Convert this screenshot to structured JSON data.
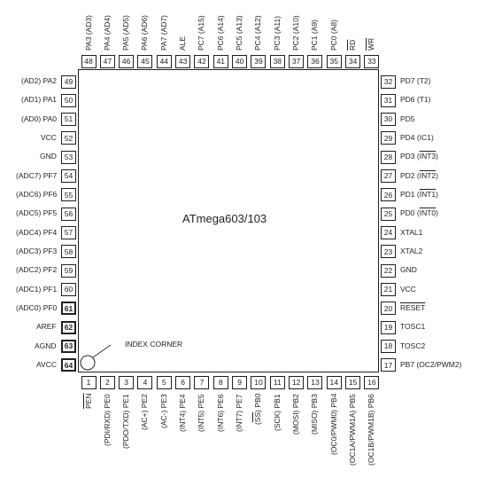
{
  "chip": {
    "name": "ATmega603/103"
  },
  "index_corner": {
    "label": "INDEX CORNER"
  },
  "pins": {
    "top": [
      {
        "num": "48",
        "label": "PA3 (AD3)"
      },
      {
        "num": "47",
        "label": "PA4 (AD4)"
      },
      {
        "num": "46",
        "label": "PA5 (AD5)"
      },
      {
        "num": "45",
        "label": "PA6 (AD6)"
      },
      {
        "num": "44",
        "label": "PA7 (AD7)"
      },
      {
        "num": "43",
        "label": "ALE"
      },
      {
        "num": "42",
        "label": "PC7 (A15)"
      },
      {
        "num": "41",
        "label": "PC6 (A14)"
      },
      {
        "num": "40",
        "label": "PC5 (A13)"
      },
      {
        "num": "39",
        "label": "PC4 (A12)"
      },
      {
        "num": "38",
        "label": "PC3 (A11)"
      },
      {
        "num": "37",
        "label": "PC2 (A10)"
      },
      {
        "num": "36",
        "label": "PC1 (A9)"
      },
      {
        "num": "35",
        "label": "PC0 (A8)"
      },
      {
        "num": "34",
        "label": "RD",
        "overline": true
      },
      {
        "num": "33",
        "label": "WR",
        "overline": true
      }
    ],
    "left": [
      {
        "num": "49",
        "label": "(AD2) PA2"
      },
      {
        "num": "50",
        "label": "(AD1) PA1"
      },
      {
        "num": "51",
        "label": "(AD0) PA0"
      },
      {
        "num": "52",
        "label": "VCC"
      },
      {
        "num": "53",
        "label": "GND"
      },
      {
        "num": "54",
        "label": "(ADC7) PF7"
      },
      {
        "num": "55",
        "label": "(ADC6) PF6"
      },
      {
        "num": "56",
        "label": "(ADC5) PF5"
      },
      {
        "num": "57",
        "label": "(ADC4) PF4"
      },
      {
        "num": "58",
        "label": "(ADC3) PF3"
      },
      {
        "num": "59",
        "label": "(ADC2) PF2"
      },
      {
        "num": "60",
        "label": "(ADC1) PF1"
      },
      {
        "num": "61",
        "label": "(ADC0) PF0",
        "bold": true
      },
      {
        "num": "62",
        "label": "AREF",
        "bold": true
      },
      {
        "num": "63",
        "label": "AGND",
        "bold": true
      },
      {
        "num": "64",
        "label": "AVCC",
        "bold": true
      }
    ],
    "right": [
      {
        "num": "32",
        "label": "PD7 (T2)"
      },
      {
        "num": "31",
        "label": "PD6 (T1)"
      },
      {
        "num": "30",
        "label": "PD5"
      },
      {
        "num": "29",
        "label": "PD4 (IC1)"
      },
      {
        "num": "28",
        "label": "PD3 (",
        "over": "INT3",
        "tail": ")"
      },
      {
        "num": "27",
        "label": "PD2 (",
        "over": "INT2",
        "tail": ")"
      },
      {
        "num": "26",
        "label": "PD1 (",
        "over": "INT1",
        "tail": ")"
      },
      {
        "num": "25",
        "label": "PD0 (",
        "over": "INT0",
        "tail": ")"
      },
      {
        "num": "24",
        "label": "XTAL1"
      },
      {
        "num": "23",
        "label": "XTAL2"
      },
      {
        "num": "22",
        "label": "GND"
      },
      {
        "num": "21",
        "label": "VCC"
      },
      {
        "num": "20",
        "label": "RESET",
        "overline": true
      },
      {
        "num": "19",
        "label": "TOSC1"
      },
      {
        "num": "18",
        "label": "TOSC2"
      },
      {
        "num": "17",
        "label": "PB7 (OC2/PWM2)"
      }
    ],
    "bottom": [
      {
        "num": "1",
        "label": "PEN",
        "overline": true
      },
      {
        "num": "2",
        "label": "(PDI/RXD) PE0"
      },
      {
        "num": "3",
        "label": "(PDO/TXD) PE1"
      },
      {
        "num": "4",
        "label": "(AC+) PE2"
      },
      {
        "num": "5",
        "label": "(AC-) PE3"
      },
      {
        "num": "6",
        "label": "(INT4) PE4"
      },
      {
        "num": "7",
        "label": "(INT5) PE5"
      },
      {
        "num": "8",
        "label": "(INT6) PE6"
      },
      {
        "num": "9",
        "label": "(INT7) PE7"
      },
      {
        "num": "10",
        "label": "(",
        "over": "SS",
        "tail": ") PB0"
      },
      {
        "num": "11",
        "label": "(SCK) PB1"
      },
      {
        "num": "12",
        "label": "(MOSI) PB2"
      },
      {
        "num": "13",
        "label": "(MISO) PB3"
      },
      {
        "num": "14",
        "label": "(OC0/PWM0) PB4"
      },
      {
        "num": "15",
        "label": "(OC1A/PWM1A) PB5"
      },
      {
        "num": "16",
        "label": "(OC1B/PWM1B) PB6"
      }
    ]
  }
}
